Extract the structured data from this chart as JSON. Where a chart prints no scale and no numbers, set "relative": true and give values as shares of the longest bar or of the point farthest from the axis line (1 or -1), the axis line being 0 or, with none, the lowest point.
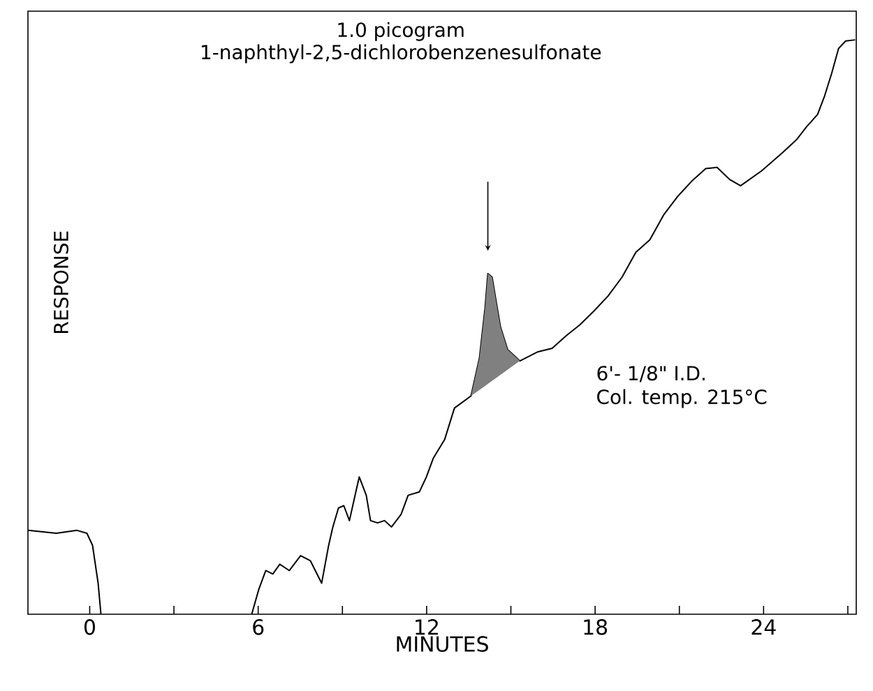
{
  "chart_data": {
    "type": "line",
    "title": "1.0 picogram",
    "subtitle": "1-naphthyl-2,5-dichlorobenzenesulfonate",
    "xlabel": "MINUTES",
    "ylabel": "RESPONSE",
    "relative": true,
    "xlim": [
      -2.2,
      27.3
    ],
    "xticks": [
      0,
      {
        "value": 3,
        "label": null
      },
      6,
      {
        "value": 9,
        "label": null
      },
      12,
      {
        "value": 15,
        "label": null
      },
      18,
      {
        "value": 21,
        "label": null
      },
      24,
      {
        "value": 27,
        "label": null
      }
    ],
    "annotations": [
      "6'- 1/8\" I.D.",
      "Col. temp. 215°C"
    ],
    "series": [
      {
        "color": "#000000",
        "x": [
          -2.19,
          -1.19,
          -0.45,
          -0.1,
          0.1,
          0.3,
          0.4,
          5.0,
          5.77,
          6.02,
          6.27,
          6.52,
          6.77,
          7.11,
          7.51,
          7.86,
          8.26,
          8.51,
          8.66,
          8.86,
          9.05,
          9.25,
          9.45,
          9.6,
          9.85,
          10.0,
          10.25,
          10.5,
          10.75,
          11.09,
          11.34,
          11.74,
          11.99,
          12.24,
          12.64,
          12.99,
          13.58,
          13.88,
          14.08,
          14.18,
          14.33,
          14.48,
          14.63,
          14.88,
          15.32,
          15.97,
          16.47,
          16.97,
          17.46,
          17.96,
          18.46,
          18.96,
          19.45,
          19.95,
          20.45,
          20.95,
          21.44,
          21.94,
          22.34,
          22.79,
          23.18,
          23.93,
          24.28,
          24.68,
          25.17,
          25.52,
          25.92,
          26.17,
          26.42,
          26.67,
          26.92,
          27.26
        ],
        "values": [
          0.146,
          0.141,
          0.146,
          0.141,
          0.12,
          0.054,
          0,
          null,
          0,
          0.043,
          0.076,
          0.07,
          0.087,
          0.076,
          0.102,
          0.093,
          0.054,
          0.12,
          0.152,
          0.185,
          0.189,
          0.163,
          0.207,
          0.239,
          0.207,
          0.163,
          0.159,
          0.163,
          0.152,
          0.174,
          0.207,
          0.213,
          0.239,
          0.272,
          0.304,
          0.359,
          0.38,
          0.446,
          0.533,
          0.593,
          0.587,
          0.543,
          0.5,
          0.461,
          0.441,
          0.457,
          0.463,
          0.485,
          0.504,
          0.528,
          0.554,
          0.587,
          0.63,
          0.652,
          0.696,
          0.728,
          0.754,
          0.776,
          0.778,
          0.757,
          0.746,
          0.772,
          0.787,
          0.804,
          0.826,
          0.848,
          0.87,
          0.902,
          0.941,
          0.985,
          0.998,
          1
        ]
      },
      {
        "type": "area",
        "color": "#808080",
        "x": [
          13.58,
          13.88,
          14.08,
          14.18,
          14.33,
          14.48,
          14.63,
          14.88,
          15.32
        ],
        "values": [
          0.38,
          0.446,
          0.533,
          0.593,
          0.587,
          0.543,
          0.5,
          0.461,
          0.441
        ]
      }
    ]
  }
}
